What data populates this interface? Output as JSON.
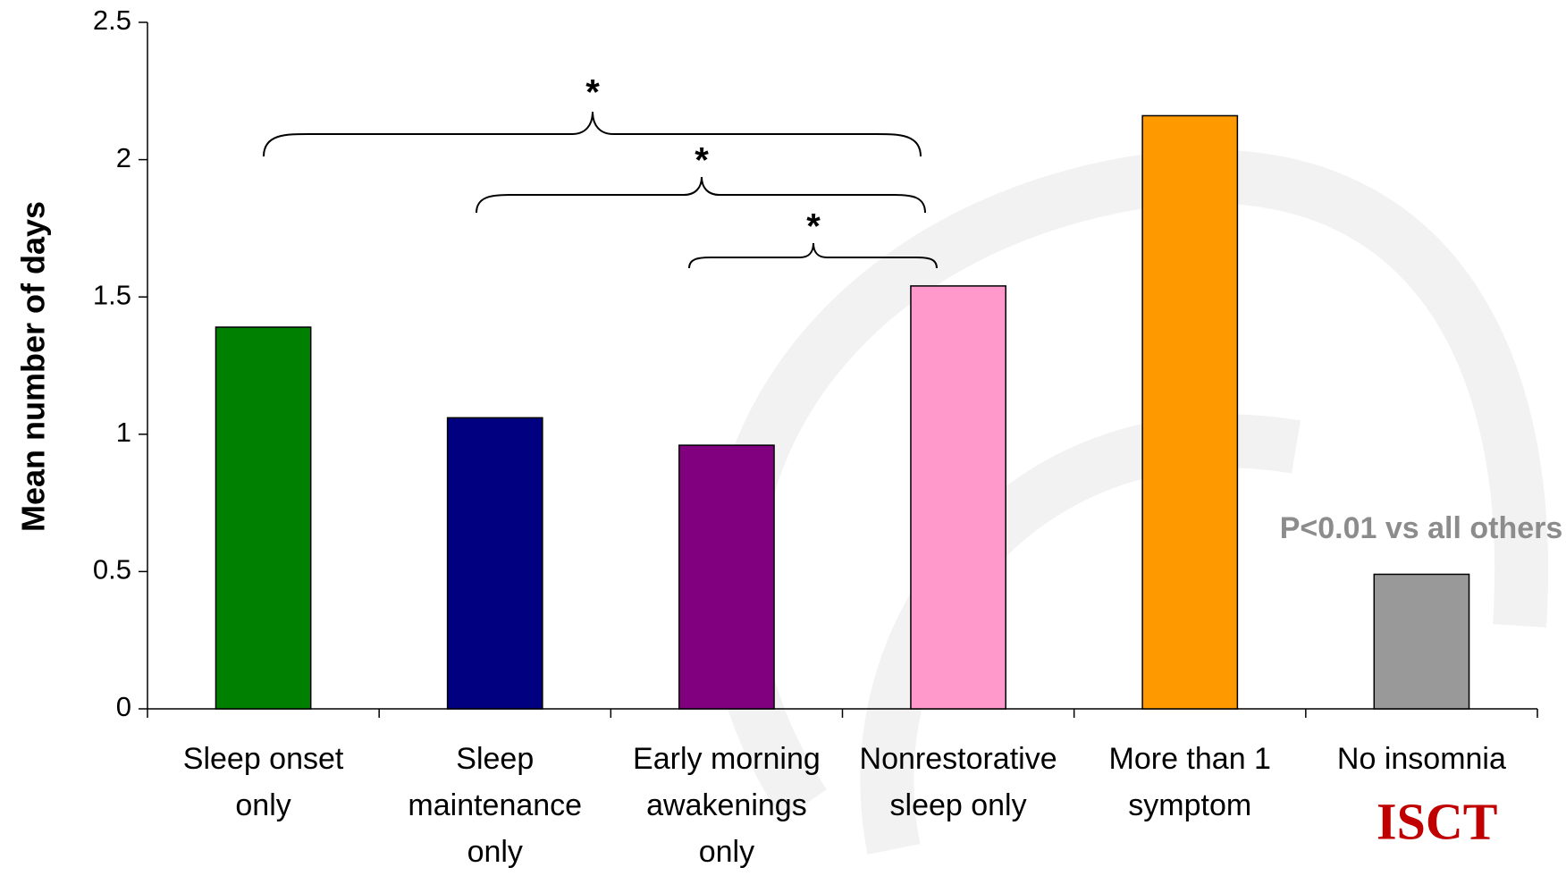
{
  "chart_data": {
    "type": "bar",
    "y_label": "Mean number of days",
    "categories": [
      [
        "Sleep onset",
        "only"
      ],
      [
        "Sleep",
        "maintenance",
        "only"
      ],
      [
        "Early morning",
        "awakenings",
        "only"
      ],
      [
        "Nonrestorative",
        "sleep only"
      ],
      [
        "More than 1",
        "symptom"
      ],
      [
        "No insomnia"
      ]
    ],
    "values": [
      1.39,
      1.06,
      0.96,
      1.54,
      2.16,
      0.49
    ],
    "colors": [
      "#008000",
      "#000080",
      "#800080",
      "#ff99cc",
      "#ff9900",
      "#999999"
    ],
    "ylim": [
      0,
      2.5
    ],
    "yticks": [
      0,
      0.5,
      1,
      1.5,
      2,
      2.5
    ],
    "annotations": [
      "*",
      "*",
      "*",
      "P<0.01 vs all others"
    ],
    "logo": "ISCT"
  }
}
